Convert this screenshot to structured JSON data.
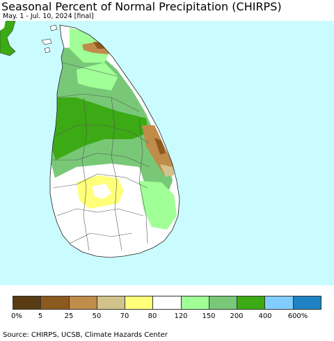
{
  "title": "Seasonal Percent of Normal Precipitation (CHIRPS)",
  "subtitle": "May. 1 - Jul. 10, 2024 [final]",
  "colors": {
    "ocean": "#cafcff",
    "land_base": "#ffffff",
    "boundary": "#555555"
  },
  "legend": {
    "colors": [
      "#5a3c14",
      "#8c5a1e",
      "#c08c4a",
      "#d2c38c",
      "#ffff7a",
      "#ffffff",
      "#a0ff96",
      "#78c878",
      "#3caa14",
      "#82cdff",
      "#1e82c3"
    ],
    "labels": [
      "0%",
      "5",
      "25",
      "50",
      "70",
      "80",
      "120",
      "150",
      "200",
      "400",
      "600%"
    ]
  },
  "source": "Source: CHIRPS, UCSB, Climate Hazards Center"
}
